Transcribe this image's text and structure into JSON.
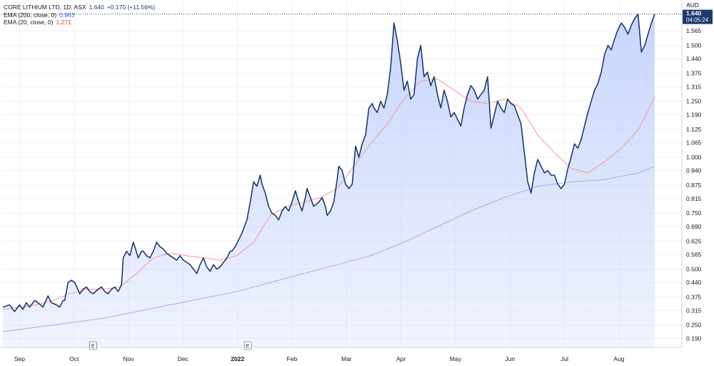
{
  "legend": {
    "symbol": "CORE LITHIUM LTD, 1D, ASX",
    "last": "1.640",
    "change": "+0.170 (+11.56%)",
    "ema200_label": "EMA (200, close, 0)",
    "ema200_value": "0.963",
    "ema20_label": "EMA (20, close, 0)",
    "ema20_value": "1.271"
  },
  "axis": {
    "currency": "AUD",
    "price_tag": "1.640",
    "price_tag_time": "04:05:24",
    "event_marker": "E"
  },
  "colors": {
    "price_line": "#1e3a6e",
    "area_fill": "#c5d3fb",
    "ema20": "#f29a9a",
    "ema200": "#a7a9e8",
    "price_tag_bg": "#1e3a6e"
  },
  "chart_data": {
    "type": "line",
    "x_ticks": [
      "Sep",
      "Oct",
      "Nov",
      "Dec",
      "2022",
      "Feb",
      "Mar",
      "Apr",
      "May",
      "Jun",
      "Jul",
      "Aug"
    ],
    "y_ticks": [
      1.565,
      1.5,
      1.44,
      1.375,
      1.315,
      1.25,
      1.19,
      1.125,
      1.065,
      1.0,
      0.94,
      0.875,
      0.815,
      0.75,
      0.69,
      0.625,
      0.565,
      0.5,
      0.44,
      0.375,
      0.315,
      0.25,
      0.19
    ],
    "ylim": [
      0.15,
      1.69
    ],
    "event_markers_x": [
      2.7,
      7.33
    ],
    "series": [
      {
        "name": "CORE LITHIUM LTD",
        "x": [
          0,
          0.2,
          0.35,
          0.5,
          0.6,
          0.7,
          0.8,
          0.95,
          1.05,
          1.2,
          1.35,
          1.45,
          1.6,
          1.7,
          1.8,
          1.85,
          1.95,
          2.05,
          2.15,
          2.3,
          2.4,
          2.5,
          2.6,
          2.7,
          2.85,
          2.95,
          3.05,
          3.15,
          3.25,
          3.35,
          3.45,
          3.55,
          3.6,
          3.7,
          3.8,
          3.9,
          3.95,
          4.05,
          4.15,
          4.2,
          4.3,
          4.4,
          4.5,
          4.6,
          4.7,
          4.8,
          4.9,
          5.0,
          5.1,
          5.2,
          5.3,
          5.4,
          5.5,
          5.6,
          5.7,
          5.8,
          5.9,
          6.0,
          6.1,
          6.2,
          6.3,
          6.4,
          6.5,
          6.6,
          6.7,
          6.8,
          6.85,
          6.95,
          7.05,
          7.15,
          7.2,
          7.3,
          7.4,
          7.5,
          7.6,
          7.7,
          7.75,
          7.85,
          7.95,
          8.05,
          8.15,
          8.25,
          8.35,
          8.45,
          8.55,
          8.65,
          8.75,
          8.85,
          8.95,
          9.05,
          9.1,
          9.2,
          9.3,
          9.45,
          9.55,
          9.65,
          9.7,
          9.8,
          9.9,
          10.0,
          10.05,
          10.15,
          10.25,
          10.35,
          10.45,
          10.55,
          10.65,
          10.75,
          10.85,
          10.95,
          11.05,
          11.1,
          11.2,
          11.3,
          11.4,
          11.5,
          11.6,
          11.7,
          11.8,
          11.9,
          12.0,
          12.1,
          12.2,
          12.3,
          12.4,
          12.5,
          12.6,
          12.7,
          12.8,
          12.9,
          13.0,
          13.1,
          13.2,
          13.3,
          13.4,
          13.5,
          13.6,
          13.7,
          13.8,
          13.9,
          14.0,
          14.1,
          14.2,
          14.3,
          14.4,
          14.5,
          14.6,
          14.7,
          14.8,
          14.9,
          15.0,
          15.1,
          15.2,
          15.3,
          15.4,
          15.5,
          15.6,
          15.7,
          15.8,
          15.9,
          16.0,
          16.1,
          16.2,
          16.3,
          16.4,
          16.5,
          16.6,
          16.7,
          16.8,
          16.9,
          17.0,
          17.1,
          17.2,
          17.3,
          17.4,
          17.5,
          17.6,
          17.7,
          17.8,
          17.9,
          18.0,
          18.1,
          18.2,
          18.3,
          18.4,
          18.5,
          18.6,
          18.7,
          18.8,
          18.9,
          19.0,
          19.1,
          19.2,
          19.3,
          19.4,
          19.5
        ],
        "values": [
          0.33,
          0.34,
          0.31,
          0.34,
          0.32,
          0.35,
          0.33,
          0.36,
          0.35,
          0.33,
          0.38,
          0.35,
          0.34,
          0.33,
          0.36,
          0.36,
          0.44,
          0.45,
          0.44,
          0.39,
          0.41,
          0.42,
          0.4,
          0.39,
          0.41,
          0.42,
          0.4,
          0.39,
          0.41,
          0.42,
          0.4,
          0.43,
          0.55,
          0.58,
          0.56,
          0.62,
          0.6,
          0.55,
          0.58,
          0.58,
          0.56,
          0.55,
          0.58,
          0.62,
          0.6,
          0.59,
          0.57,
          0.56,
          0.55,
          0.54,
          0.56,
          0.54,
          0.53,
          0.52,
          0.5,
          0.48,
          0.52,
          0.55,
          0.51,
          0.49,
          0.52,
          0.5,
          0.51,
          0.53,
          0.55,
          0.58,
          0.58,
          0.6,
          0.63,
          0.66,
          0.68,
          0.72,
          0.8,
          0.89,
          0.87,
          0.92,
          0.88,
          0.84,
          0.78,
          0.75,
          0.74,
          0.72,
          0.76,
          0.78,
          0.76,
          0.8,
          0.85,
          0.8,
          0.76,
          0.82,
          0.86,
          0.82,
          0.78,
          0.8,
          0.82,
          0.78,
          0.74,
          0.76,
          0.8,
          0.9,
          0.96,
          0.94,
          0.88,
          0.86,
          0.88,
          1.05,
          1.0,
          1.06,
          1.1,
          1.22,
          1.24,
          1.22,
          1.2,
          1.25,
          1.22,
          1.28,
          1.4,
          1.6,
          1.52,
          1.42,
          1.3,
          1.34,
          1.26,
          1.28,
          1.44,
          1.5,
          1.36,
          1.38,
          1.32,
          1.36,
          1.28,
          1.22,
          1.3,
          1.25,
          1.18,
          1.2,
          1.17,
          1.14,
          1.22,
          1.28,
          1.32,
          1.3,
          1.26,
          1.28,
          1.3,
          1.36,
          1.13,
          1.19,
          1.25,
          1.22,
          1.2,
          1.26,
          1.24,
          1.23,
          1.19,
          1.15,
          1.02,
          0.89,
          0.84,
          0.93,
          0.99,
          0.96,
          0.93,
          0.94,
          0.92,
          0.92,
          0.88,
          0.86,
          0.88,
          0.95,
          1.0,
          1.06,
          1.04,
          1.08,
          1.14,
          1.2,
          1.25,
          1.3,
          1.33,
          1.38,
          1.46,
          1.5,
          1.48,
          1.53,
          1.57,
          1.6,
          1.58,
          1.55,
          1.59,
          1.62,
          1.64,
          1.47,
          1.5,
          1.55,
          1.6,
          1.64
        ]
      },
      {
        "name": "EMA (20, close, 0)",
        "x": [
          0,
          0.5,
          1,
          1.5,
          2,
          2.5,
          3,
          3.5,
          4,
          4.5,
          5,
          5.5,
          6,
          6.5,
          7,
          7.5,
          8,
          8.5,
          9,
          9.5,
          10,
          10.5,
          11,
          11.5,
          12,
          12.5,
          13,
          13.5,
          14,
          14.5,
          15,
          15.5,
          16,
          16.5,
          17,
          17.5,
          18,
          18.5,
          19,
          19.5
        ],
        "values": [
          0.32,
          0.33,
          0.34,
          0.36,
          0.39,
          0.41,
          0.41,
          0.42,
          0.48,
          0.55,
          0.57,
          0.56,
          0.55,
          0.54,
          0.56,
          0.62,
          0.74,
          0.78,
          0.8,
          0.82,
          0.86,
          0.96,
          1.06,
          1.15,
          1.26,
          1.34,
          1.35,
          1.3,
          1.25,
          1.24,
          1.26,
          1.22,
          1.1,
          1.02,
          0.95,
          0.93,
          0.98,
          1.04,
          1.12,
          1.27
        ]
      },
      {
        "name": "EMA (200, close, 0)",
        "x": [
          0,
          1,
          2,
          3,
          4,
          5,
          6,
          7,
          8,
          9,
          10,
          11,
          12,
          13,
          14,
          15,
          16,
          17,
          18,
          19,
          19.5
        ],
        "values": [
          0.22,
          0.24,
          0.26,
          0.28,
          0.31,
          0.34,
          0.37,
          0.4,
          0.44,
          0.48,
          0.52,
          0.56,
          0.62,
          0.69,
          0.76,
          0.82,
          0.87,
          0.89,
          0.9,
          0.93,
          0.96
        ]
      }
    ]
  }
}
